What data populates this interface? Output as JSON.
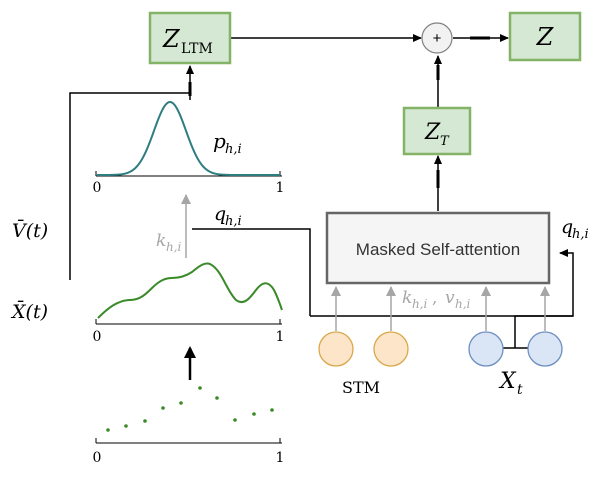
{
  "nodes": {
    "z_ltm": {
      "main": "Z",
      "sub": "LTM"
    },
    "z_t": {
      "main": "Z",
      "sub": "T"
    },
    "z": {
      "main": "Z"
    },
    "plus": {
      "symbol": "+"
    },
    "attention": {
      "label": "Masked Self-attention"
    }
  },
  "labels": {
    "p": {
      "main": "p",
      "sub": "h,i"
    },
    "q_left": {
      "main": "q",
      "sub": "h,i"
    },
    "q_right": {
      "main": "q",
      "sub": "h,i"
    },
    "k_left": {
      "main": "k",
      "sub": "h,i"
    },
    "kv": {
      "k": "k",
      "k_sub": "h,i",
      "sep": ", ",
      "v": "v",
      "v_sub": "h,i"
    },
    "vbar": "V̄(t)",
    "xbar": "X̄(t)",
    "stm": "STM",
    "xt": {
      "main": "X",
      "sub": "t"
    }
  },
  "axes": {
    "top": {
      "min": "0",
      "max": "1"
    },
    "mid": {
      "min": "0",
      "max": "1"
    },
    "bottom": {
      "min": "0",
      "max": "1"
    }
  },
  "colors": {
    "box_fill": "#d5e8d4",
    "box_stroke": "#82b366",
    "gaussian": "#2e7d80",
    "signal": "#3a8a2a",
    "stm_fill": "#fce5c8",
    "stm_stroke": "#d9a74b",
    "xt_fill": "#dae5f5",
    "xt_stroke": "#6c8ebf",
    "grey_arrow": "#a6a6a6"
  }
}
